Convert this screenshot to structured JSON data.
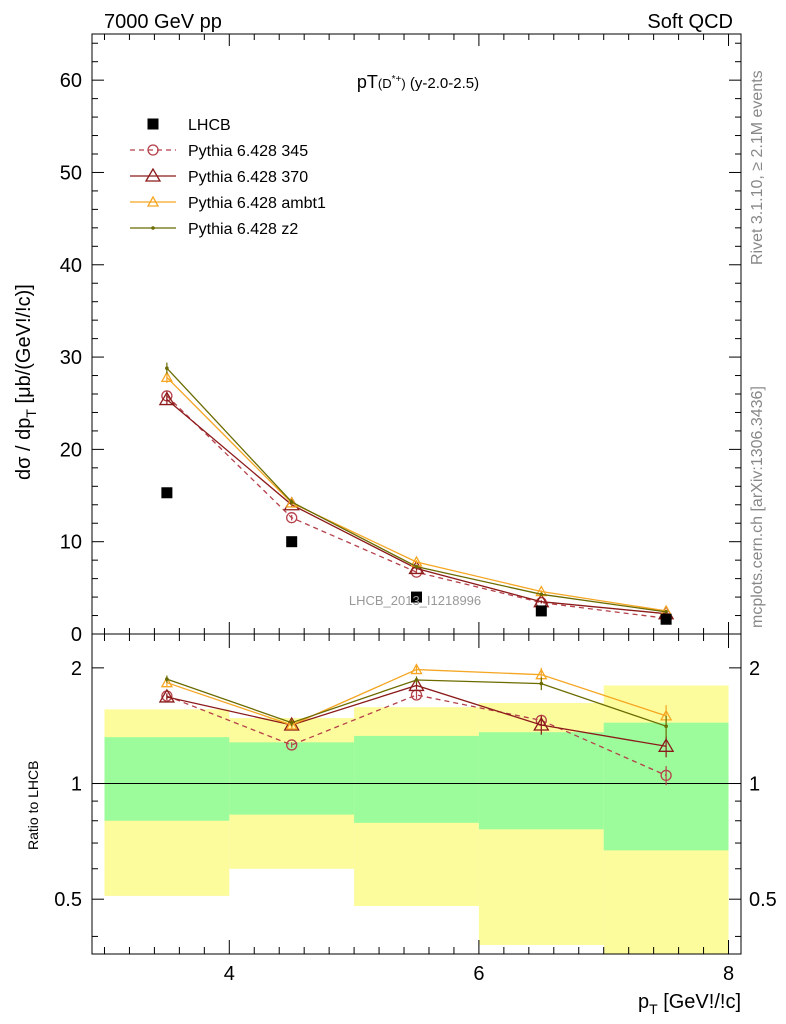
{
  "header": {
    "energy_label": "7000 GeV pp",
    "category_label": "Soft QCD"
  },
  "side": {
    "rivet_label": "Rivet 3.1.10, ≥ 2.1M events",
    "source_label": "mcplots.cern.ch [arXiv:1306.3436]"
  },
  "chart_data": [
    {
      "type": "line",
      "title": "pT(D*+) (y-2.0-2.5)",
      "ylabel": "dσ / dp_T [μb/(GeV!/!c)]",
      "xlabel": "",
      "xlim": [
        2.9,
        8.1
      ],
      "ylim": [
        0,
        65
      ],
      "yticks": [
        "0",
        "10",
        "20",
        "30",
        "40",
        "50",
        "60"
      ],
      "grid": false,
      "legend_position": "top-left",
      "watermark": "LHCB_2013_I1218996",
      "x": [
        3.5,
        4.5,
        5.5,
        6.5,
        7.5
      ],
      "series": [
        {
          "name": "LHCB",
          "color": "#000000",
          "style": "markers",
          "marker": "square",
          "values": [
            15.3,
            10.0,
            4.0,
            2.5,
            1.6
          ],
          "errors": [
            0,
            0,
            0,
            0,
            0
          ]
        },
        {
          "name": "Pythia 6.428 345",
          "color": "#b5404a",
          "style": "dashed",
          "marker": "circle",
          "values": [
            25.8,
            12.6,
            6.7,
            3.4,
            1.7
          ],
          "errors": [
            0.5,
            0.3,
            0.2,
            0.1,
            0.1
          ]
        },
        {
          "name": "Pythia 6.428 370",
          "color": "#8b1a1a",
          "style": "solid",
          "marker": "triangle",
          "values": [
            25.4,
            14.0,
            7.1,
            3.5,
            2.2
          ],
          "errors": [
            0.5,
            0.3,
            0.2,
            0.15,
            0.1
          ]
        },
        {
          "name": "Pythia 6.428 ambt1",
          "color": "#f5a623",
          "style": "solid",
          "marker": "triangle-small",
          "values": [
            27.8,
            14.2,
            7.8,
            4.6,
            2.5
          ],
          "errors": [
            0.6,
            0.3,
            0.2,
            0.15,
            0.15
          ]
        },
        {
          "name": "Pythia 6.428 z2",
          "color": "#6b6b00",
          "style": "solid",
          "marker": "dot",
          "values": [
            28.8,
            14.3,
            7.3,
            4.3,
            2.4
          ],
          "errors": [
            0.6,
            0.3,
            0.2,
            0.15,
            0.15
          ]
        }
      ]
    },
    {
      "type": "line",
      "ylabel": "Ratio to LHCB",
      "xlabel": "p_T [GeV!/!c]",
      "xlim": [
        2.9,
        8.1
      ],
      "ylim": [
        0.36,
        2.45
      ],
      "yscale": "log",
      "yticks": [
        "0.5",
        "1",
        "2"
      ],
      "xticks": [
        "4",
        "6",
        "8"
      ],
      "grid": false,
      "reference_value": 1,
      "bands": {
        "edges": [
          3.0,
          4.0,
          5.0,
          6.0,
          7.0,
          8.0
        ],
        "inner": [
          [
            0.8,
            1.32
          ],
          [
            0.83,
            1.28
          ],
          [
            0.79,
            1.33
          ],
          [
            0.76,
            1.36
          ],
          [
            0.67,
            1.44
          ]
        ],
        "outer": [
          [
            0.51,
            1.56
          ],
          [
            0.6,
            1.48
          ],
          [
            0.48,
            1.58
          ],
          [
            0.38,
            1.62
          ],
          [
            0.36,
            1.8
          ]
        ],
        "inner_color": "#9cfc9c",
        "outer_color": "#fcfc9c"
      },
      "x": [
        3.5,
        4.5,
        5.5,
        6.5,
        7.5
      ],
      "series": [
        {
          "name": "Pythia 6.428 345",
          "color": "#b5404a",
          "style": "dashed",
          "marker": "circle",
          "values": [
            1.69,
            1.26,
            1.7,
            1.46,
            1.05
          ],
          "errors": [
            0.03,
            0.02,
            0.04,
            0.05,
            0.06
          ]
        },
        {
          "name": "Pythia 6.428 370",
          "color": "#8b1a1a",
          "style": "solid",
          "marker": "triangle",
          "values": [
            1.68,
            1.42,
            1.8,
            1.42,
            1.25
          ],
          "errors": [
            0.03,
            0.03,
            0.04,
            0.08,
            0.08
          ]
        },
        {
          "name": "Pythia 6.428 ambt1",
          "color": "#f5a623",
          "style": "solid",
          "marker": "triangle-small",
          "values": [
            1.83,
            1.42,
            1.98,
            1.92,
            1.5
          ],
          "errors": [
            0.04,
            0.03,
            0.05,
            0.08,
            0.1
          ]
        },
        {
          "name": "Pythia 6.428 z2",
          "color": "#6b6b00",
          "style": "solid",
          "marker": "dot",
          "values": [
            1.87,
            1.44,
            1.86,
            1.82,
            1.41
          ],
          "errors": [
            0.04,
            0.03,
            0.04,
            0.07,
            0.09
          ]
        }
      ]
    }
  ]
}
